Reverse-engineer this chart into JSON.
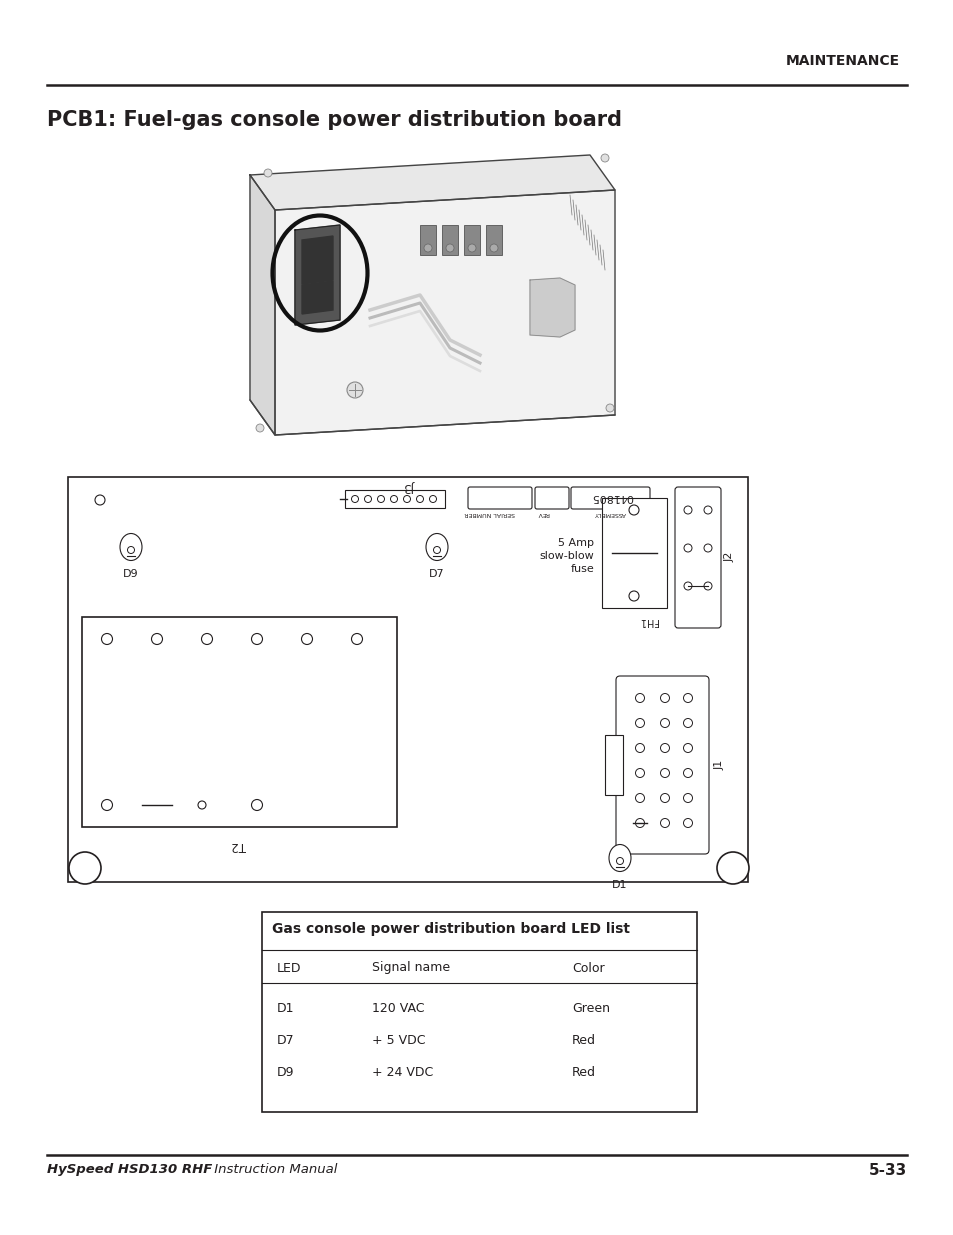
{
  "page_title": "MAINTENANCE",
  "section_title": "PCB1: Fuel-gas console power distribution board",
  "footer_left_bold": "HySpeed HSD130 RHF",
  "footer_left_normal": " Instruction Manual",
  "footer_right": "5-33",
  "table_title": "Gas console power distribution board LED list",
  "table_header": [
    "LED",
    "Signal name",
    "Color"
  ],
  "table_rows": [
    [
      "D1",
      "120 VAC",
      "Green"
    ],
    [
      "D7",
      "+ 5 VDC",
      "Red"
    ],
    [
      "D9",
      "+ 24 VDC",
      "Red"
    ]
  ],
  "bg_color": "#ffffff",
  "text_color": "#231f20",
  "line_color": "#231f20",
  "gray_color": "#999999"
}
